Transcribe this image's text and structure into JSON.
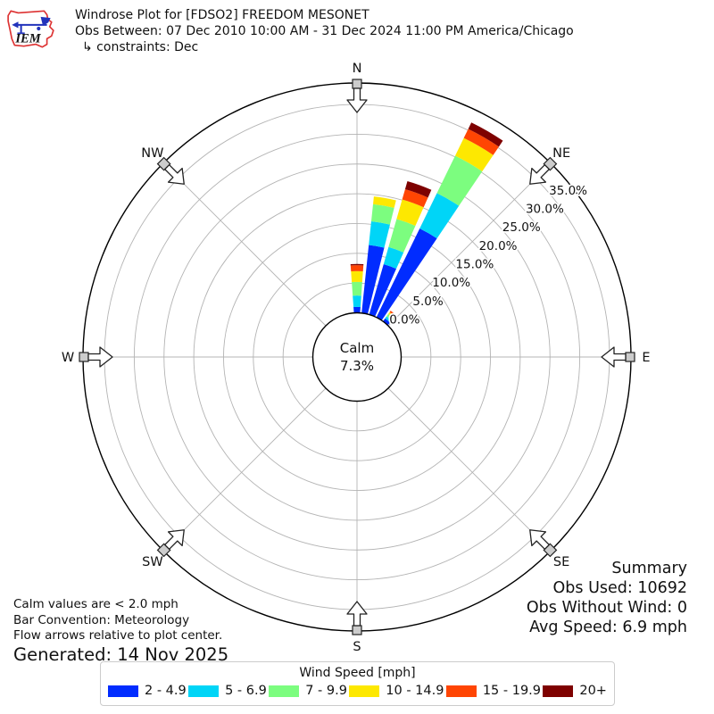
{
  "header": {
    "title": "Windrose Plot for [FDSO2] FREEDOM MESONET",
    "subtitle": "Obs Between: 07 Dec 2010 10:00 AM - 31 Dec 2024 11:00 PM America/Chicago",
    "constraints": "↳ constraints: Dec"
  },
  "logo": {
    "text": "IEM"
  },
  "footer": {
    "calm_note": "Calm values are < 2.0 mph",
    "convention_note": "Bar Convention: Meteorology",
    "arrows_note": "Flow arrows relative to plot center.",
    "generated": "Generated: 14 Nov 2025"
  },
  "summary": {
    "heading": "Summary",
    "obs_used": "Obs Used: 10692",
    "obs_without_wind": "Obs Without Wind: 0",
    "avg_speed": "Avg Speed: 6.9 mph"
  },
  "legend_title": "Wind Speed [mph]",
  "chart_data": {
    "type": "windrose",
    "units": "mph",
    "calm": {
      "label": "Calm",
      "value_text": "7.3%",
      "percent": 7.3
    },
    "compass": [
      {
        "label": "N",
        "deg": 0
      },
      {
        "label": "NE",
        "deg": 45
      },
      {
        "label": "E",
        "deg": 90
      },
      {
        "label": "SE",
        "deg": 135
      },
      {
        "label": "S",
        "deg": 180
      },
      {
        "label": "SW",
        "deg": 225
      },
      {
        "label": "W",
        "deg": 270
      },
      {
        "label": "NW",
        "deg": 315
      }
    ],
    "radial_ticks": [
      {
        "value": 0,
        "label": "0.0%"
      },
      {
        "value": 5,
        "label": "5.0%"
      },
      {
        "value": 10,
        "label": "10.0%"
      },
      {
        "value": 15,
        "label": "15.0%"
      },
      {
        "value": 20,
        "label": "20.0%"
      },
      {
        "value": 25,
        "label": "25.0%"
      },
      {
        "value": 30,
        "label": "30.0%"
      },
      {
        "value": 35,
        "label": "35.0%"
      }
    ],
    "radial_label_angle_deg": 51.7,
    "sector_width_deg": 8,
    "speed_bins": [
      {
        "label": "2 - 4.9",
        "color": "#012cff"
      },
      {
        "label": "5 - 6.9",
        "color": "#00d5f7"
      },
      {
        "label": "7 - 9.9",
        "color": "#7cfd7f"
      },
      {
        "label": "10 - 14.9",
        "color": "#fde801"
      },
      {
        "label": "15 - 19.9",
        "color": "#ff4503"
      },
      {
        "label": "20+",
        "color": "#7e0100"
      }
    ],
    "bars": [
      {
        "direction_deg": 0,
        "values_pct": [
          1.0,
          1.9,
          2.3,
          1.8,
          1.0,
          0.2
        ]
      },
      {
        "direction_deg": 10,
        "values_pct": [
          11.5,
          4.0,
          2.9,
          1.3,
          0.0,
          0.0
        ]
      },
      {
        "direction_deg": 20,
        "values_pct": [
          8.8,
          3.0,
          4.9,
          3.4,
          1.8,
          1.4
        ]
      },
      {
        "direction_deg": 30,
        "values_pct": [
          16.6,
          6.6,
          7.0,
          3.3,
          1.7,
          1.2
        ]
      },
      {
        "direction_deg": 40,
        "values_pct": [
          0.6,
          0.4,
          0.5,
          0.4,
          0.3,
          0.0
        ]
      }
    ]
  }
}
